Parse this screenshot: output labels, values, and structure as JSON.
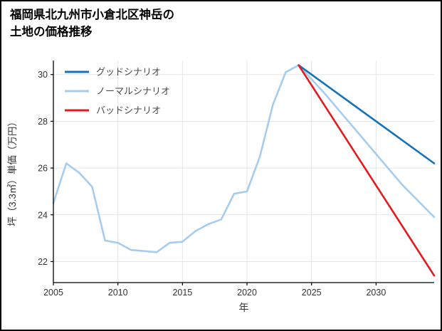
{
  "page": {
    "background": "#ffffff",
    "border_color": "#000000"
  },
  "chart_data": {
    "type": "line",
    "title": "福岡県北九州市小倉北区神岳の\n土地の価格推移",
    "xlabel": "年",
    "ylabel": "坪（3.3㎡）単価（万円）",
    "xlim": [
      2005,
      2034.5
    ],
    "ylim": [
      21.1,
      30.6
    ],
    "xticks": [
      2005,
      2010,
      2015,
      2020,
      2025,
      2030
    ],
    "yticks": [
      22,
      24,
      26,
      28,
      30
    ],
    "grid": true,
    "grid_color": "#e5e5e5",
    "spine_color": "#000000",
    "tick_label_color": "#333333",
    "axis_label_color": "#333333",
    "legend_position": "upper-left",
    "legend_text_color": "#4a4a4a",
    "series": [
      {
        "key": "good",
        "name": "グッドシナリオ",
        "color": "#1572b8",
        "x": [
          2024,
          2034.5
        ],
        "y": [
          30.4,
          26.2
        ]
      },
      {
        "key": "normal",
        "name": "ノーマルシナリオ",
        "color": "#a6cdee",
        "x": [
          2005,
          2006,
          2007,
          2008,
          2009,
          2010,
          2011,
          2012,
          2013,
          2014,
          2015,
          2016,
          2017,
          2018,
          2019,
          2020,
          2021,
          2022,
          2023,
          2024,
          2026,
          2028,
          2030,
          2032,
          2034.5
        ],
        "y": [
          24.5,
          26.2,
          25.8,
          25.2,
          22.9,
          22.8,
          22.5,
          22.45,
          22.4,
          22.8,
          22.85,
          23.3,
          23.6,
          23.8,
          24.9,
          25.0,
          26.5,
          28.7,
          30.1,
          30.4,
          29.2,
          27.9,
          26.6,
          25.3,
          23.9
        ]
      },
      {
        "key": "bad",
        "name": "バッドシナリオ",
        "color": "#e41a1c",
        "x": [
          2024,
          2034.5
        ],
        "y": [
          30.4,
          21.4
        ]
      }
    ]
  }
}
